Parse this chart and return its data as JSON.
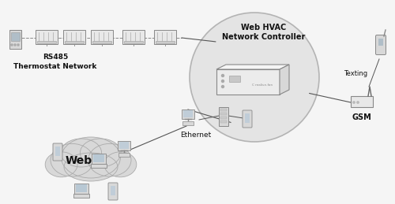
{
  "bg_color": "#f5f5f5",
  "labels": {
    "rs485": "RS485\nThermostat Network",
    "web_hvac": "Web HVAC\nNetwork Controller",
    "ethernet": "Ethernet",
    "web": "Web",
    "gsm": "GSM",
    "texting": "Texting"
  },
  "circle_fill": "#e2e2e2",
  "circle_edge": "#aaaaaa",
  "cloud_fill": "#d8d8d8",
  "cloud_edge": "#aaaaaa",
  "box_front": "#ececec",
  "box_top": "#f5f5f5",
  "box_right": "#d8d8d8",
  "box_edge": "#888888",
  "line_color": "#555555",
  "text_color": "#111111",
  "device_fill": "#d8d8d8",
  "device_edge": "#888888"
}
